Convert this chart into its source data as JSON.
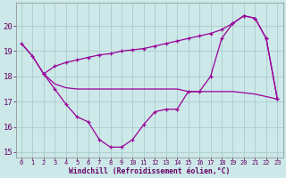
{
  "line1_x": [
    0,
    1,
    2,
    3,
    4,
    5,
    6,
    7,
    8,
    9,
    10,
    11,
    12,
    13,
    14,
    15,
    16,
    17,
    18,
    19,
    20,
    21,
    22,
    23
  ],
  "line1_y": [
    19.3,
    18.8,
    18.1,
    17.5,
    16.9,
    16.4,
    16.2,
    15.5,
    15.2,
    15.2,
    15.5,
    16.1,
    16.6,
    16.7,
    16.7,
    17.4,
    17.4,
    18.0,
    19.5,
    20.1,
    20.4,
    20.3,
    19.5,
    17.1
  ],
  "line2_x": [
    0,
    1,
    2,
    3,
    4,
    5,
    6,
    7,
    8,
    9,
    10,
    11,
    12,
    13,
    14,
    15,
    16,
    17,
    18,
    19,
    20,
    21,
    22,
    23
  ],
  "line2_y": [
    19.3,
    18.8,
    18.1,
    17.7,
    17.55,
    17.5,
    17.5,
    17.5,
    17.5,
    17.5,
    17.5,
    17.5,
    17.5,
    17.5,
    17.5,
    17.4,
    17.4,
    17.4,
    17.4,
    17.4,
    17.35,
    17.3,
    17.2,
    17.1
  ],
  "line3_x": [
    2,
    3,
    4,
    5,
    6,
    7,
    8,
    9,
    10,
    11,
    12,
    13,
    14,
    15,
    16,
    17,
    18,
    19,
    20,
    21,
    22,
    23
  ],
  "line3_y": [
    18.1,
    18.4,
    18.55,
    18.65,
    18.75,
    18.85,
    18.9,
    19.0,
    19.05,
    19.1,
    19.2,
    19.3,
    19.4,
    19.5,
    19.6,
    19.7,
    19.85,
    20.1,
    20.4,
    20.3,
    19.5,
    17.1
  ],
  "line_color": "#990099",
  "bg_color": "#cce8e8",
  "grid_color": "#aacccc",
  "xlabel": "Windchill (Refroidissement éolien,°C)",
  "ylim": [
    14.8,
    20.9
  ],
  "xlim": [
    -0.5,
    23.5
  ],
  "yticks": [
    15,
    16,
    17,
    18,
    19,
    20
  ],
  "xticks": [
    0,
    1,
    2,
    3,
    4,
    5,
    6,
    7,
    8,
    9,
    10,
    11,
    12,
    13,
    14,
    15,
    16,
    17,
    18,
    19,
    20,
    21,
    22,
    23
  ]
}
